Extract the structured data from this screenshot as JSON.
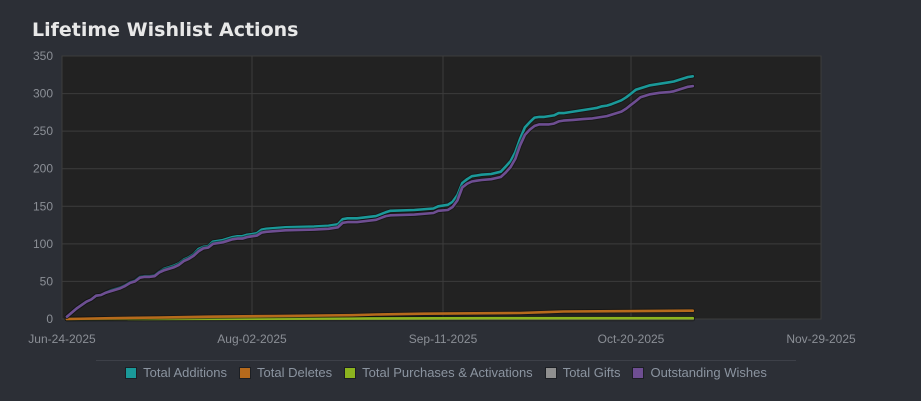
{
  "title": "Lifetime Wishlist Actions",
  "chart_data": {
    "type": "line",
    "title": "Lifetime Wishlist Actions",
    "xlabel": "",
    "ylabel": "",
    "ylim": [
      0,
      350
    ],
    "yticks": [
      0,
      50,
      100,
      150,
      200,
      250,
      300,
      350
    ],
    "x_tick_labels": [
      "Jun-24-2025",
      "Aug-02-2025",
      "Sep-11-2025",
      "Oct-20-2025",
      "Nov-29-2025"
    ],
    "x_day_range": [
      0,
      158
    ],
    "x_tick_days": [
      0,
      39,
      79,
      118,
      158
    ],
    "grid": true,
    "legend_position": "bottom",
    "series": [
      {
        "name": "Total Additions",
        "color": "#1a9999",
        "points": [
          [
            1,
            3
          ],
          [
            3,
            14
          ],
          [
            5,
            23
          ],
          [
            6,
            26
          ],
          [
            7,
            31
          ],
          [
            8,
            32
          ],
          [
            9,
            35
          ],
          [
            10,
            38
          ],
          [
            11,
            40
          ],
          [
            12,
            42
          ],
          [
            13,
            45
          ],
          [
            14,
            49
          ],
          [
            15,
            51
          ],
          [
            16,
            56
          ],
          [
            17,
            57
          ],
          [
            18,
            57
          ],
          [
            19,
            58
          ],
          [
            20,
            63
          ],
          [
            21,
            67
          ],
          [
            22,
            69
          ],
          [
            23,
            71
          ],
          [
            24,
            74
          ],
          [
            25,
            79
          ],
          [
            26,
            82
          ],
          [
            27,
            86
          ],
          [
            28,
            93
          ],
          [
            29,
            96
          ],
          [
            30,
            97
          ],
          [
            31,
            103
          ],
          [
            32,
            104
          ],
          [
            33,
            105
          ],
          [
            34,
            107
          ],
          [
            35,
            109
          ],
          [
            36,
            110
          ],
          [
            37,
            110
          ],
          [
            38,
            112
          ],
          [
            39,
            113
          ],
          [
            40,
            114
          ],
          [
            41,
            119
          ],
          [
            42,
            120
          ],
          [
            44,
            121
          ],
          [
            46,
            122
          ],
          [
            52,
            123
          ],
          [
            55,
            124
          ],
          [
            57,
            126
          ],
          [
            58,
            133
          ],
          [
            59,
            134
          ],
          [
            61,
            134
          ],
          [
            65,
            137
          ],
          [
            67,
            142
          ],
          [
            68,
            144
          ],
          [
            73,
            145
          ],
          [
            77,
            147
          ],
          [
            78,
            150
          ],
          [
            80,
            152
          ],
          [
            81,
            156
          ],
          [
            82,
            165
          ],
          [
            83,
            181
          ],
          [
            84,
            186
          ],
          [
            85,
            190
          ],
          [
            86,
            191
          ],
          [
            87,
            192
          ],
          [
            89,
            193
          ],
          [
            91,
            196
          ],
          [
            92,
            203
          ],
          [
            93,
            210
          ],
          [
            94,
            222
          ],
          [
            95,
            240
          ],
          [
            96,
            255
          ],
          [
            97,
            262
          ],
          [
            98,
            268
          ],
          [
            99,
            269
          ],
          [
            100,
            269
          ],
          [
            101,
            270
          ],
          [
            102,
            271
          ],
          [
            103,
            274
          ],
          [
            104,
            274
          ],
          [
            106,
            276
          ],
          [
            108,
            278
          ],
          [
            110,
            280
          ],
          [
            111,
            281
          ],
          [
            112,
            283
          ],
          [
            113,
            284
          ],
          [
            114,
            286
          ],
          [
            116,
            291
          ],
          [
            117,
            295
          ],
          [
            118,
            300
          ],
          [
            119,
            305
          ],
          [
            120,
            307
          ],
          [
            121,
            309
          ],
          [
            122,
            311
          ],
          [
            124,
            313
          ],
          [
            126,
            315
          ],
          [
            127,
            316
          ],
          [
            128,
            318
          ],
          [
            129,
            320
          ],
          [
            130,
            322
          ],
          [
            131,
            323
          ]
        ]
      },
      {
        "name": "Total Deletes",
        "color": "#b66a1c",
        "points": [
          [
            1,
            0
          ],
          [
            10,
            1
          ],
          [
            20,
            2
          ],
          [
            30,
            3
          ],
          [
            44,
            4
          ],
          [
            60,
            5
          ],
          [
            65,
            6
          ],
          [
            75,
            7
          ],
          [
            95,
            8
          ],
          [
            100,
            9
          ],
          [
            104,
            10
          ],
          [
            130,
            11
          ],
          [
            131,
            11
          ]
        ]
      },
      {
        "name": "Total Purchases & Activations",
        "color": "#8cb41f",
        "points": [
          [
            1,
            0
          ],
          [
            90,
            1
          ],
          [
            131,
            1
          ]
        ]
      },
      {
        "name": "Total Gifts",
        "color": "#8f8f8f",
        "points": [
          [
            1,
            0
          ],
          [
            131,
            0
          ]
        ]
      },
      {
        "name": "Outstanding Wishes",
        "color": "#6e4e92",
        "points": [
          [
            1,
            3
          ],
          [
            3,
            14
          ],
          [
            5,
            23
          ],
          [
            6,
            26
          ],
          [
            7,
            31
          ],
          [
            8,
            32
          ],
          [
            9,
            35
          ],
          [
            10,
            37
          ],
          [
            11,
            39
          ],
          [
            12,
            41
          ],
          [
            13,
            44
          ],
          [
            14,
            48
          ],
          [
            15,
            50
          ],
          [
            16,
            55
          ],
          [
            17,
            56
          ],
          [
            18,
            56
          ],
          [
            19,
            57
          ],
          [
            20,
            62
          ],
          [
            21,
            65
          ],
          [
            22,
            67
          ],
          [
            23,
            69
          ],
          [
            24,
            72
          ],
          [
            25,
            77
          ],
          [
            26,
            80
          ],
          [
            27,
            84
          ],
          [
            28,
            90
          ],
          [
            29,
            94
          ],
          [
            30,
            95
          ],
          [
            31,
            100
          ],
          [
            32,
            101
          ],
          [
            33,
            102
          ],
          [
            34,
            104
          ],
          [
            35,
            106
          ],
          [
            36,
            107
          ],
          [
            37,
            107
          ],
          [
            38,
            109
          ],
          [
            39,
            110
          ],
          [
            40,
            111
          ],
          [
            41,
            115
          ],
          [
            42,
            116
          ],
          [
            44,
            117
          ],
          [
            46,
            118
          ],
          [
            52,
            119
          ],
          [
            55,
            120
          ],
          [
            57,
            122
          ],
          [
            58,
            128
          ],
          [
            59,
            129
          ],
          [
            61,
            129
          ],
          [
            65,
            132
          ],
          [
            67,
            137
          ],
          [
            68,
            138
          ],
          [
            73,
            139
          ],
          [
            77,
            141
          ],
          [
            78,
            144
          ],
          [
            80,
            145
          ],
          [
            81,
            149
          ],
          [
            82,
            158
          ],
          [
            83,
            175
          ],
          [
            84,
            180
          ],
          [
            85,
            183
          ],
          [
            86,
            184
          ],
          [
            87,
            185
          ],
          [
            89,
            186
          ],
          [
            91,
            189
          ],
          [
            92,
            195
          ],
          [
            93,
            202
          ],
          [
            94,
            213
          ],
          [
            95,
            231
          ],
          [
            96,
            245
          ],
          [
            97,
            252
          ],
          [
            98,
            257
          ],
          [
            99,
            259
          ],
          [
            100,
            259
          ],
          [
            101,
            259
          ],
          [
            102,
            260
          ],
          [
            103,
            263
          ],
          [
            104,
            264
          ],
          [
            106,
            265
          ],
          [
            108,
            266
          ],
          [
            110,
            267
          ],
          [
            111,
            268
          ],
          [
            112,
            269
          ],
          [
            113,
            270
          ],
          [
            114,
            272
          ],
          [
            116,
            276
          ],
          [
            117,
            280
          ],
          [
            118,
            285
          ],
          [
            119,
            290
          ],
          [
            120,
            295
          ],
          [
            121,
            297
          ],
          [
            122,
            299
          ],
          [
            124,
            301
          ],
          [
            126,
            302
          ],
          [
            127,
            303
          ],
          [
            128,
            305
          ],
          [
            129,
            307
          ],
          [
            130,
            309
          ],
          [
            131,
            310
          ]
        ]
      }
    ]
  }
}
